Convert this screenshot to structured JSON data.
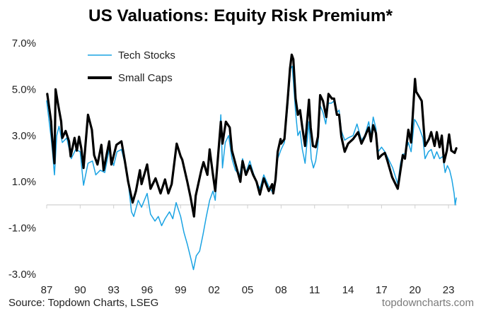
{
  "chart_data": {
    "type": "line",
    "title": "US Valuations: Equity Risk Premium*",
    "xlabel": "",
    "ylabel": "",
    "xlim": [
      1987,
      2024.5
    ],
    "ylim": [
      -3.0,
      7.0
    ],
    "y_ticks": [
      {
        "value": 7,
        "label": "7.0%"
      },
      {
        "value": 5,
        "label": "5.0%"
      },
      {
        "value": 3,
        "label": "3.0%"
      },
      {
        "value": 1,
        "label": "1.0%"
      },
      {
        "value": -1,
        "label": "-1.0%"
      },
      {
        "value": -3,
        "label": "-3.0%"
      }
    ],
    "x_ticks": [
      {
        "value": 1987,
        "label": "87"
      },
      {
        "value": 1990,
        "label": "90"
      },
      {
        "value": 1993,
        "label": "93"
      },
      {
        "value": 1996,
        "label": "96"
      },
      {
        "value": 1999,
        "label": "99"
      },
      {
        "value": 2002,
        "label": "02"
      },
      {
        "value": 2005,
        "label": "05"
      },
      {
        "value": 2008,
        "label": "08"
      },
      {
        "value": 2011,
        "label": "11"
      },
      {
        "value": 2014,
        "label": "14"
      },
      {
        "value": 2017,
        "label": "17"
      },
      {
        "value": 2020,
        "label": "20"
      },
      {
        "value": 2023,
        "label": "23"
      }
    ],
    "grid": false,
    "legend_position": "top-left",
    "series": [
      {
        "name": "Tech Stocks",
        "color": "#1aa3e3",
        "x": [
          1987.0,
          1987.4,
          1987.5,
          1987.7,
          1987.9,
          1988.1,
          1988.4,
          1988.8,
          1989.2,
          1989.6,
          1990.0,
          1990.3,
          1990.7,
          1991.1,
          1991.4,
          1991.8,
          1992.2,
          1992.6,
          1993.0,
          1993.3,
          1993.7,
          1994.0,
          1994.3,
          1994.6,
          1994.8,
          1995.2,
          1995.5,
          1996.0,
          1996.3,
          1996.7,
          1997.0,
          1997.3,
          1997.6,
          1998.0,
          1998.3,
          1998.6,
          1999.0,
          1999.3,
          1999.6,
          1999.9,
          2000.15,
          2000.4,
          2000.7,
          2001.0,
          2001.3,
          2001.6,
          2001.9,
          2002.1,
          2002.6,
          2002.75,
          2003.0,
          2003.3,
          2003.6,
          2003.9,
          2004.3,
          2004.55,
          2004.85,
          2005.2,
          2005.5,
          2005.8,
          2006.1,
          2006.45,
          2006.9,
          2007.3,
          2007.7,
          2008.0,
          2008.3,
          2008.6,
          2008.85,
          2009.0,
          2009.3,
          2009.5,
          2009.7,
          2009.9,
          2010.15,
          2010.5,
          2010.7,
          2010.9,
          2011.1,
          2011.3,
          2011.5,
          2011.75,
          2012.0,
          2012.25,
          2012.5,
          2012.75,
          2013.0,
          2013.2,
          2013.4,
          2013.7,
          2014.0,
          2014.45,
          2014.8,
          2015.2,
          2015.5,
          2015.85,
          2016.05,
          2016.25,
          2016.5,
          2016.7,
          2017.0,
          2017.3,
          2017.6,
          2018.0,
          2018.45,
          2018.7,
          2018.9,
          2019.1,
          2019.4,
          2019.65,
          2019.95,
          2020.1,
          2020.4,
          2020.7,
          2020.9,
          2021.2,
          2021.45,
          2021.7,
          2021.95,
          2022.2,
          2022.5,
          2022.7,
          2022.9,
          2023.1,
          2023.3,
          2023.5,
          2023.6,
          2023.7
        ],
        "values": [
          4.5,
          2.9,
          2.4,
          1.3,
          3.0,
          3.4,
          2.7,
          2.9,
          2.0,
          2.4,
          2.3,
          0.85,
          1.8,
          1.9,
          1.3,
          1.5,
          1.4,
          2.4,
          1.7,
          2.3,
          2.4,
          1.8,
          1.0,
          -0.3,
          -0.5,
          0.2,
          -0.1,
          0.5,
          -0.4,
          -0.7,
          -0.5,
          -0.9,
          -0.6,
          -0.3,
          -0.6,
          0.1,
          -0.5,
          -1.2,
          -1.7,
          -2.3,
          -2.8,
          -2.2,
          -2.0,
          -1.3,
          -0.5,
          0.2,
          0.6,
          0.2,
          3.9,
          1.6,
          2.7,
          3.0,
          2.0,
          1.5,
          1.3,
          2.0,
          1.4,
          1.9,
          1.4,
          1.0,
          0.7,
          1.3,
          0.8,
          0.5,
          2.0,
          2.4,
          2.7,
          4.3,
          5.9,
          6.0,
          4.0,
          3.0,
          3.2,
          2.4,
          1.8,
          3.6,
          2.0,
          1.6,
          1.9,
          2.6,
          4.3,
          4.0,
          3.5,
          4.4,
          4.4,
          4.5,
          4.0,
          4.1,
          3.2,
          2.8,
          2.9,
          3.0,
          3.5,
          2.8,
          3.0,
          3.6,
          3.0,
          3.8,
          3.3,
          2.3,
          2.5,
          2.3,
          2.0,
          1.6,
          0.9,
          1.8,
          2.2,
          2.2,
          2.7,
          2.3,
          3.7,
          3.6,
          3.3,
          2.9,
          2.0,
          2.3,
          2.4,
          2.0,
          2.3,
          2.0,
          2.1,
          1.4,
          1.7,
          1.5,
          1.1,
          0.5,
          0.0,
          0.3
        ]
      },
      {
        "name": "Small Caps",
        "color": "#000000",
        "x": [
          1987.05,
          1987.4,
          1987.45,
          1987.7,
          1987.8,
          1988.0,
          1988.3,
          1988.4,
          1988.7,
          1989.0,
          1989.15,
          1989.5,
          1989.7,
          1989.9,
          1990.1,
          1990.3,
          1990.7,
          1991.05,
          1991.25,
          1991.55,
          1991.9,
          1992.1,
          1992.6,
          1992.8,
          1993.25,
          1993.7,
          1994.0,
          1994.3,
          1994.7,
          1995.0,
          1995.35,
          1995.5,
          1996.0,
          1996.3,
          1996.75,
          1997.2,
          1997.6,
          1997.9,
          1998.2,
          1998.65,
          1999.0,
          1999.15,
          1999.6,
          1999.9,
          2000.2,
          2000.35,
          2000.85,
          2001.05,
          2001.4,
          2001.6,
          2001.9,
          2002.1,
          2002.6,
          2002.75,
          2003.05,
          2003.4,
          2003.6,
          2003.9,
          2004.35,
          2004.55,
          2004.85,
          2005.2,
          2005.5,
          2005.8,
          2006.1,
          2006.45,
          2006.9,
          2007.2,
          2007.3,
          2007.5,
          2007.7,
          2007.95,
          2008.0,
          2008.3,
          2008.6,
          2008.8,
          2008.95,
          2009.1,
          2009.3,
          2009.5,
          2009.7,
          2009.9,
          2010.15,
          2010.5,
          2010.65,
          2010.85,
          2011.1,
          2011.3,
          2011.5,
          2011.75,
          2012.05,
          2012.25,
          2012.55,
          2012.75,
          2013.0,
          2013.2,
          2013.4,
          2013.7,
          2014.0,
          2014.45,
          2014.9,
          2015.2,
          2015.5,
          2015.85,
          2016.05,
          2016.25,
          2016.5,
          2016.7,
          2017.0,
          2017.3,
          2017.5,
          2017.95,
          2018.45,
          2018.7,
          2018.9,
          2019.1,
          2019.4,
          2019.65,
          2020.0,
          2020.1,
          2020.35,
          2020.6,
          2020.9,
          2021.25,
          2021.45,
          2021.75,
          2021.95,
          2022.2,
          2022.4,
          2022.6,
          2022.85,
          2023.05,
          2023.25,
          2023.55,
          2023.7
        ],
        "values": [
          4.8,
          3.6,
          3.15,
          1.8,
          5.0,
          4.4,
          3.6,
          2.9,
          3.2,
          2.75,
          2.1,
          2.9,
          2.35,
          2.95,
          2.45,
          1.6,
          3.9,
          3.25,
          2.15,
          1.75,
          2.6,
          1.5,
          2.75,
          1.75,
          2.6,
          2.75,
          1.9,
          1.0,
          0.1,
          0.6,
          1.5,
          0.9,
          1.75,
          0.7,
          1.15,
          0.5,
          1.1,
          0.5,
          0.9,
          2.65,
          2.1,
          1.95,
          1.0,
          0.3,
          -0.5,
          0.4,
          1.5,
          1.85,
          1.3,
          2.4,
          1.3,
          0.6,
          3.6,
          2.65,
          3.6,
          3.35,
          2.35,
          1.8,
          1.0,
          1.9,
          1.3,
          1.7,
          1.3,
          1.0,
          0.45,
          1.15,
          0.6,
          0.9,
          0.5,
          1.1,
          2.3,
          2.85,
          2.65,
          2.85,
          4.6,
          5.9,
          6.5,
          6.3,
          4.6,
          3.9,
          4.1,
          3.35,
          2.55,
          4.55,
          3.35,
          2.55,
          2.5,
          2.95,
          4.75,
          4.5,
          3.8,
          4.8,
          4.6,
          4.6,
          3.9,
          3.9,
          2.95,
          2.3,
          2.65,
          2.85,
          3.15,
          2.65,
          2.95,
          3.35,
          2.75,
          3.45,
          3.1,
          2.0,
          2.15,
          2.25,
          1.95,
          1.2,
          0.7,
          1.5,
          2.15,
          2.0,
          3.25,
          2.7,
          5.45,
          4.9,
          4.7,
          4.5,
          2.55,
          2.85,
          3.15,
          2.55,
          3.15,
          2.5,
          3.0,
          1.85,
          2.35,
          3.05,
          2.35,
          2.25,
          2.45
        ]
      }
    ],
    "source": "Source: Topdown Charts, LSEG",
    "watermark": "topdowncharts.com"
  }
}
